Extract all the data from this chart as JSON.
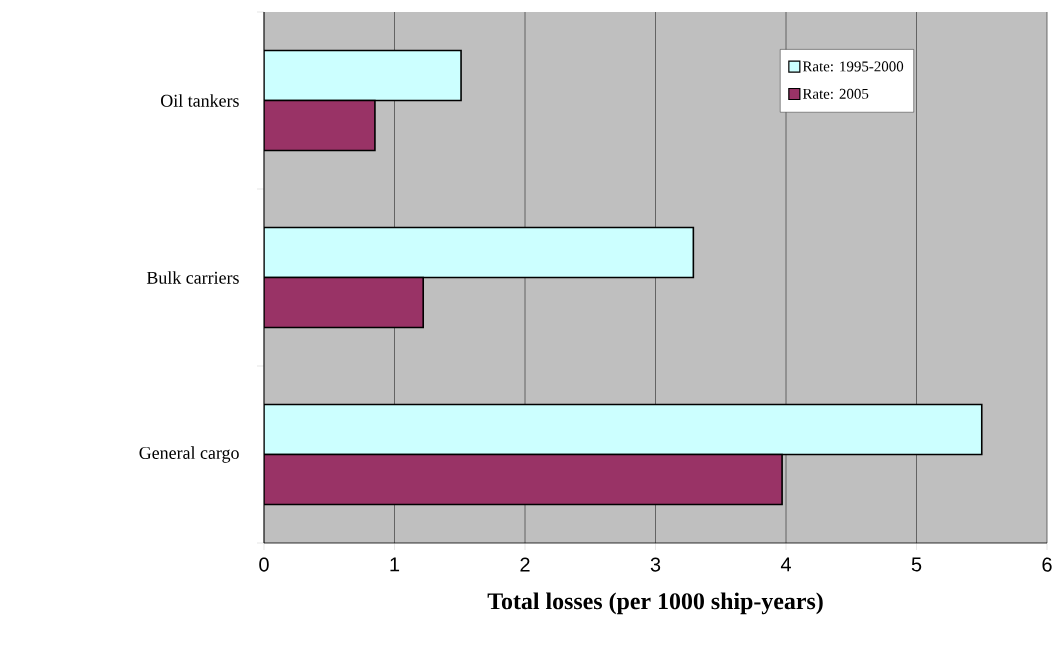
{
  "chart_data": {
    "type": "bar",
    "orientation": "horizontal",
    "categories": [
      "Oil tankers",
      "Bulk carriers",
      "General cargo"
    ],
    "series": [
      {
        "name": "Rate: 1995-2000",
        "color": "#ccffff",
        "values": [
          1.51,
          3.29,
          5.5
        ]
      },
      {
        "name": "Rate: 2005",
        "color": "#993366",
        "values": [
          0.85,
          1.22,
          3.97
        ]
      }
    ],
    "xlabel": "Total losses (per 1000 ship-years)",
    "xlim": [
      0,
      6
    ],
    "xticks": [
      0,
      1,
      2,
      3,
      4,
      5,
      6
    ],
    "grid": "x",
    "legend": "top right"
  }
}
